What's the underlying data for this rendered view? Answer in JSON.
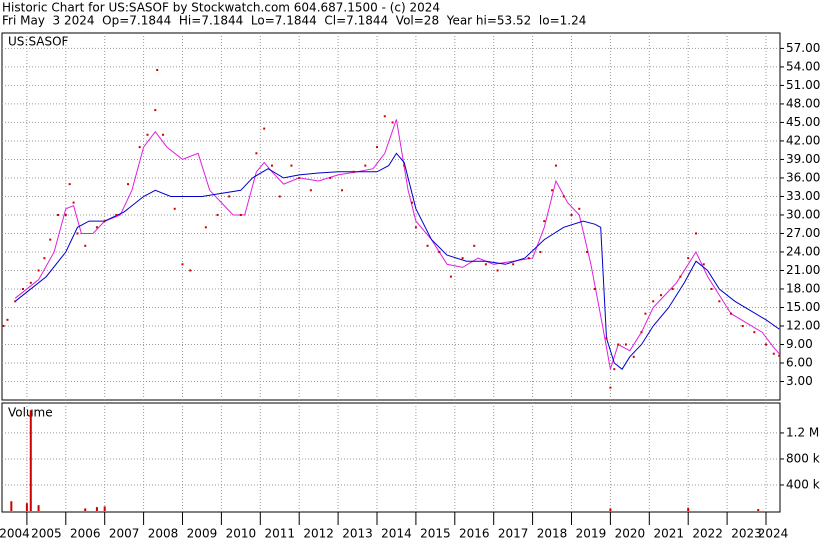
{
  "chart_data": [
    {
      "type": "price",
      "title": "Historic Chart for US:SASOF by Stockwatch.com 604.687.1500 - (c) 2024",
      "subtitle": "Fri May  3 2024  Op=7.1844  Hi=7.1844  Lo=7.1844  Cl=7.1844  Vol=28  Year hi=53.52  lo=1.24",
      "label": "US:SASOF",
      "xlim": [
        2004.36,
        2024.36
      ],
      "xticks": [
        2005,
        2006,
        2007,
        2008,
        2009,
        2010,
        2011,
        2012,
        2013,
        2014,
        2015,
        2016,
        2017,
        2018,
        2019,
        2020,
        2021,
        2022,
        2023,
        2024
      ],
      "ylim": [
        0,
        59.5
      ],
      "yticks": [
        {
          "value": 3,
          "label": "3.00"
        },
        {
          "value": 6,
          "label": "6.00"
        },
        {
          "value": 9,
          "label": "9.00"
        },
        {
          "value": 12,
          "label": "12.00"
        },
        {
          "value": 15,
          "label": "15.00"
        },
        {
          "value": 18,
          "label": "18.00"
        },
        {
          "value": 21,
          "label": "21.00"
        },
        {
          "value": 24,
          "label": "24.00"
        },
        {
          "value": 27,
          "label": "27.00"
        },
        {
          "value": 30,
          "label": "30.00"
        },
        {
          "value": 33,
          "label": "33.00"
        },
        {
          "value": 36,
          "label": "36.00"
        },
        {
          "value": 39,
          "label": "39.00"
        },
        {
          "value": 42,
          "label": "42.00"
        },
        {
          "value": 45,
          "label": "45.00"
        },
        {
          "value": 48,
          "label": "48.00"
        },
        {
          "value": 51,
          "label": "51.00"
        },
        {
          "value": 54,
          "label": "54.00"
        },
        {
          "value": 57,
          "label": "57.00"
        }
      ],
      "grid": true,
      "series": [
        {
          "type": "scatter",
          "color": "#cc0000",
          "x": [
            2004.4,
            2004.5,
            2004.7,
            2004.9,
            2005.1,
            2005.3,
            2005.45,
            2005.6,
            2005.8,
            2006.0,
            2006.1,
            2006.2,
            2006.3,
            2006.5,
            2006.8,
            2007.0,
            2007.3,
            2007.6,
            2007.9,
            2008.1,
            2008.3,
            2008.35,
            2008.5,
            2008.8,
            2009.0,
            2009.2,
            2009.6,
            2009.9,
            2010.2,
            2010.5,
            2010.9,
            2011.1,
            2011.3,
            2011.5,
            2011.8,
            2012.0,
            2012.3,
            2012.8,
            2013.1,
            2013.4,
            2013.7,
            2014.0,
            2014.2,
            2014.4,
            2014.7,
            2014.9,
            2015.0,
            2015.3,
            2015.6,
            2015.9,
            2016.2,
            2016.5,
            2016.8,
            2017.1,
            2017.5,
            2017.9,
            2018.2,
            2018.3,
            2018.5,
            2018.6,
            2018.8,
            2019.0,
            2019.2,
            2019.4,
            2019.6,
            2019.9,
            2020.0,
            2020.1,
            2020.2,
            2020.4,
            2020.6,
            2020.8,
            2020.9,
            2021.1,
            2021.3,
            2021.6,
            2021.8,
            2022.0,
            2022.2,
            2022.4,
            2022.6,
            2022.8,
            2023.1,
            2023.4,
            2023.7,
            2024.0,
            2024.2,
            2024.34
          ],
          "values": [
            12,
            13,
            16,
            18,
            19,
            21,
            23,
            26,
            30,
            30,
            35,
            32,
            27,
            25,
            28,
            29,
            30,
            35,
            41,
            43,
            47,
            53.5,
            43,
            31,
            22,
            21,
            28,
            30,
            33,
            30,
            40,
            44,
            38,
            33,
            38,
            36,
            34,
            36,
            34,
            37,
            38,
            41,
            46,
            45,
            38,
            32,
            28,
            25,
            24,
            20,
            23,
            25,
            22,
            21,
            22,
            23,
            24,
            29,
            34,
            38,
            33,
            30,
            31,
            24,
            18,
            10,
            2,
            5,
            9,
            9,
            7,
            11,
            14,
            16,
            17,
            18,
            20,
            23,
            27,
            22,
            18,
            16,
            14,
            12,
            11,
            9,
            7.5,
            7.18
          ]
        },
        {
          "type": "line",
          "color": "#e020e0",
          "x": [
            2004.7,
            2005.3,
            2005.7,
            2006.0,
            2006.2,
            2006.4,
            2006.7,
            2007.0,
            2007.4,
            2007.7,
            2008.0,
            2008.3,
            2008.6,
            2009.0,
            2009.4,
            2009.7,
            2010.0,
            2010.3,
            2010.6,
            2010.9,
            2011.1,
            2011.3,
            2011.6,
            2012.0,
            2012.5,
            2013.0,
            2013.5,
            2013.9,
            2014.2,
            2014.5,
            2014.8,
            2015.0,
            2015.4,
            2015.8,
            2016.2,
            2016.6,
            2017.0,
            2017.5,
            2018.0,
            2018.3,
            2018.6,
            2018.9,
            2019.2,
            2019.5,
            2019.8,
            2020.0,
            2020.2,
            2020.5,
            2020.8,
            2021.1,
            2021.4,
            2021.7,
            2022.0,
            2022.2,
            2022.5,
            2022.8,
            2023.1,
            2023.5,
            2023.9,
            2024.2,
            2024.34
          ],
          "values": [
            16.5,
            19.5,
            24,
            31,
            31.5,
            27,
            27,
            29,
            30,
            34,
            41,
            43.5,
            41,
            39,
            40,
            34,
            32,
            30,
            30,
            37,
            38.5,
            37,
            35,
            36,
            35.5,
            36.5,
            37,
            37.5,
            40,
            45.5,
            34,
            29,
            26,
            22,
            21.5,
            23,
            22,
            22.5,
            23,
            28,
            35.5,
            32,
            30,
            22,
            12,
            5,
            9,
            8,
            11,
            15,
            17,
            19,
            22,
            24,
            20,
            17,
            14,
            12.5,
            11,
            8.5,
            7.5
          ]
        },
        {
          "type": "line",
          "color": "#0000cc",
          "x": [
            2004.7,
            2005.5,
            2006.0,
            2006.3,
            2006.6,
            2007.0,
            2007.5,
            2008.0,
            2008.3,
            2008.7,
            2009.5,
            2010.0,
            2010.5,
            2010.8,
            2011.2,
            2011.6,
            2012.0,
            2012.5,
            2013.0,
            2013.5,
            2014.0,
            2014.3,
            2014.5,
            2014.7,
            2015.0,
            2015.4,
            2015.8,
            2016.3,
            2016.8,
            2017.3,
            2017.8,
            2018.3,
            2018.8,
            2019.3,
            2019.6,
            2019.75,
            2019.9,
            2020.1,
            2020.3,
            2020.5,
            2020.8,
            2021.1,
            2021.5,
            2021.9,
            2022.2,
            2022.5,
            2022.8,
            2023.2,
            2023.6,
            2024.0,
            2024.34
          ],
          "values": [
            16,
            20,
            24,
            28,
            29,
            29,
            30.5,
            33,
            34,
            33,
            33,
            33.5,
            34,
            36,
            37.5,
            36,
            36.5,
            36.8,
            37,
            37,
            37,
            38,
            40,
            38.5,
            31,
            26,
            23.5,
            22.5,
            22.5,
            22,
            23,
            26,
            28,
            29,
            28.5,
            28,
            10,
            6,
            5,
            7,
            9,
            12,
            15,
            19,
            22.5,
            21,
            18,
            16,
            14.5,
            13,
            11.5
          ]
        }
      ]
    },
    {
      "type": "bar",
      "label": "Volume",
      "color": "#cc0000",
      "xlim": [
        2004.36,
        2024.36
      ],
      "xticks": [
        2004,
        2005,
        2006,
        2007,
        2008,
        2009,
        2010,
        2011,
        2012,
        2013,
        2014,
        2015,
        2016,
        2017,
        2018,
        2019,
        2020,
        2021,
        2022,
        2023,
        2024
      ],
      "ylim": [
        0,
        1660000
      ],
      "yticks": [
        {
          "value": 400000,
          "label": "400 k"
        },
        {
          "value": 800000,
          "label": "800 k"
        },
        {
          "value": 1200000,
          "label": "1.2 M"
        }
      ],
      "grid": true,
      "x": [
        2004.6,
        2005.0,
        2005.1,
        2005.3,
        2006.5,
        2006.8,
        2007.0,
        2020.0,
        2022.0,
        2023.8
      ],
      "values": [
        150000,
        120000,
        1550000,
        90000,
        40000,
        60000,
        70000,
        40000,
        50000,
        30000
      ]
    }
  ]
}
